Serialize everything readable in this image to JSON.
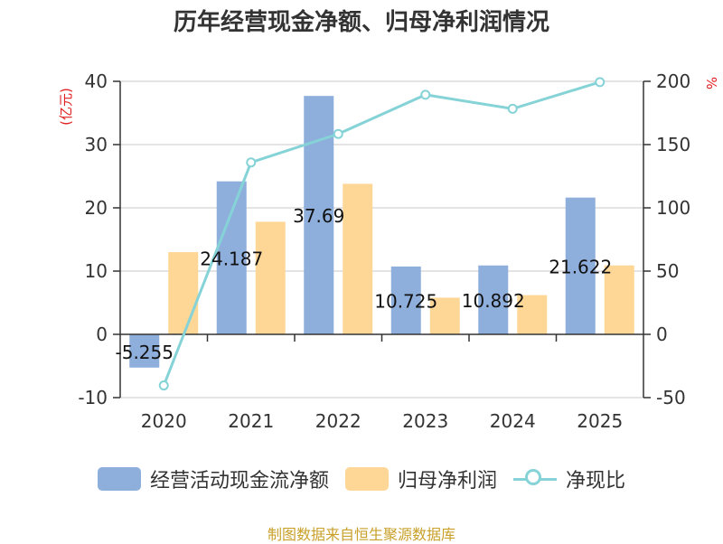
{
  "title": "历年经营现金净额、归母净利润情况",
  "source": "制图数据来自恒生聚源数据库",
  "chart_data": {
    "type": "bar",
    "categories": [
      "2020",
      "2021",
      "2022",
      "2023",
      "2024",
      "2025"
    ],
    "y_left": {
      "label": "(亿元)",
      "ticks": [
        40,
        30,
        20,
        10,
        0,
        -10
      ],
      "range": [
        -10,
        40
      ]
    },
    "y_right": {
      "label": "%",
      "ticks": [
        200,
        150,
        100,
        50,
        0,
        -50
      ],
      "range": [
        -50,
        200
      ]
    },
    "series": [
      {
        "name": "经营活动现金流净额",
        "kind": "bar",
        "axis": "left",
        "color": "#8eaedc",
        "values": [
          -5.255,
          24.187,
          37.69,
          10.725,
          10.892,
          21.622
        ],
        "labels": [
          "-5.255",
          "24.187",
          "37.69",
          "10.725",
          "10.892",
          "21.622"
        ]
      },
      {
        "name": "归母净利润",
        "kind": "bar",
        "axis": "left",
        "color": "#fed797",
        "values": [
          13.0,
          17.8,
          23.8,
          5.8,
          6.2,
          10.9
        ]
      },
      {
        "name": "净现比",
        "kind": "line",
        "axis": "right",
        "color": "#85d3d7",
        "values": [
          -40.4,
          135.9,
          158.4,
          189.4,
          178.3,
          199.4
        ]
      }
    ],
    "grid": true,
    "legend": "bottom"
  }
}
